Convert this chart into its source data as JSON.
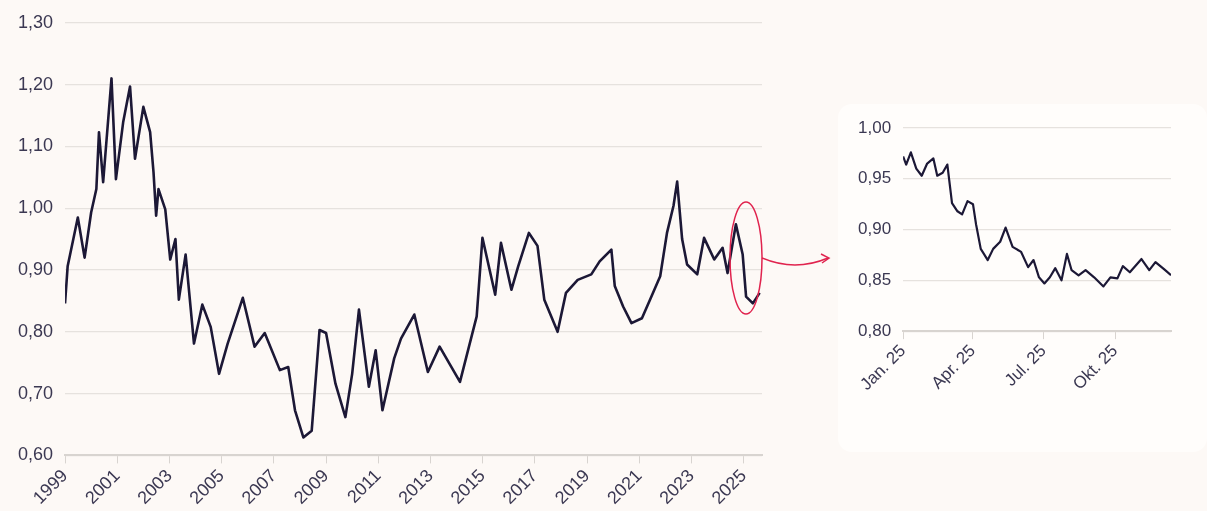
{
  "chart_data": [
    {
      "type": "line",
      "x": [
        1999.0,
        1999.1,
        1999.49,
        1999.75,
        2000.0,
        2000.2,
        2000.3,
        2000.46,
        2000.78,
        2000.95,
        2001.23,
        2001.49,
        2001.68,
        2002.0,
        2002.26,
        2002.39,
        2002.49,
        2002.58,
        2002.84,
        2003.03,
        2003.23,
        2003.36,
        2003.62,
        2003.94,
        2004.26,
        2004.58,
        2004.9,
        2005.23,
        2005.81,
        2006.26,
        2006.65,
        2007.23,
        2007.55,
        2007.81,
        2008.13,
        2008.45,
        2008.75,
        2009.0,
        2009.36,
        2009.74,
        2010.0,
        2010.26,
        2010.64,
        2010.9,
        2011.16,
        2011.61,
        2011.87,
        2012.38,
        2012.9,
        2013.35,
        2014.13,
        2014.77,
        2014.99,
        2015.48,
        2015.7,
        2016.1,
        2016.36,
        2016.77,
        2017.1,
        2017.36,
        2017.87,
        2018.19,
        2018.64,
        2019.16,
        2019.48,
        2019.93,
        2020.06,
        2020.38,
        2020.7,
        2021.1,
        2021.41,
        2021.8,
        2022.06,
        2022.31,
        2022.45,
        2022.64,
        2022.83,
        2023.22,
        2023.48,
        2023.87,
        2024.19,
        2024.38,
        2024.7,
        2024.96,
        2025.09,
        2025.35,
        2025.61
      ],
      "series": [
        {
          "color": "#1c1836",
          "values": [
            0.846,
            0.906,
            0.985,
            0.92,
            0.993,
            1.031,
            1.123,
            1.042,
            1.21,
            1.047,
            1.14,
            1.197,
            1.08,
            1.164,
            1.123,
            1.058,
            0.988,
            1.031,
            0.998,
            0.917,
            0.95,
            0.852,
            0.925,
            0.781,
            0.844,
            0.808,
            0.732,
            0.781,
            0.855,
            0.776,
            0.798,
            0.738,
            0.743,
            0.673,
            0.629,
            0.64,
            0.803,
            0.798,
            0.716,
            0.662,
            0.732,
            0.836,
            0.711,
            0.77,
            0.673,
            0.757,
            0.789,
            0.828,
            0.735,
            0.776,
            0.719,
            0.825,
            0.952,
            0.86,
            0.944,
            0.868,
            0.906,
            0.96,
            0.939,
            0.852,
            0.8,
            0.863,
            0.884,
            0.893,
            0.914,
            0.933,
            0.874,
            0.841,
            0.814,
            0.822,
            0.852,
            0.89,
            0.96,
            1.004,
            1.043,
            0.95,
            0.909,
            0.893,
            0.952,
            0.917,
            0.936,
            0.895,
            0.974,
            0.925,
            0.857,
            0.846,
            0.863
          ]
        }
      ],
      "xlim": [
        1999,
        2025.7
      ],
      "xticks": [
        1999,
        2001,
        2003,
        2005,
        2007,
        2009,
        2011,
        2013,
        2015,
        2017,
        2019,
        2021,
        2023,
        2025
      ],
      "ylim": [
        0.6,
        1.3
      ],
      "yticks": [
        {
          "value": 0.6,
          "label": "0,60"
        },
        {
          "value": 0.7,
          "label": "0,70"
        },
        {
          "value": 0.8,
          "label": "0,80"
        },
        {
          "value": 0.9,
          "label": "0,90"
        },
        {
          "value": 1.0,
          "label": "1,00"
        },
        {
          "value": 1.1,
          "label": "1,10"
        },
        {
          "value": 1.2,
          "label": "1,20"
        },
        {
          "value": 1.3,
          "label": "1,30"
        }
      ],
      "grid": "y"
    },
    {
      "type": "line",
      "x": [
        "2025-01-01",
        "2025-01-05",
        "2025-01-11",
        "2025-01-18",
        "2025-01-25",
        "2025-02-01",
        "2025-02-09",
        "2025-02-14",
        "2025-02-21",
        "2025-02-27",
        "2025-03-05",
        "2025-03-12",
        "2025-03-18",
        "2025-03-25",
        "2025-04-01",
        "2025-04-05",
        "2025-04-11",
        "2025-04-20",
        "2025-04-27",
        "2025-05-06",
        "2025-05-13",
        "2025-05-22",
        "2025-06-02",
        "2025-06-11",
        "2025-06-18",
        "2025-06-25",
        "2025-07-02",
        "2025-07-09",
        "2025-07-16",
        "2025-07-24",
        "2025-07-31",
        "2025-08-06",
        "2025-08-15",
        "2025-08-24",
        "2025-09-04",
        "2025-09-16",
        "2025-09-25",
        "2025-10-04",
        "2025-10-11",
        "2025-10-20",
        "2025-11-04",
        "2025-11-14",
        "2025-11-22",
        "2025-12-03",
        "2025-12-12"
      ],
      "series": [
        {
          "color": "#1c1836",
          "values": [
            0.972,
            0.964,
            0.976,
            0.96,
            0.953,
            0.965,
            0.97,
            0.953,
            0.956,
            0.964,
            0.926,
            0.918,
            0.915,
            0.928,
            0.925,
            0.905,
            0.881,
            0.87,
            0.881,
            0.888,
            0.902,
            0.883,
            0.878,
            0.863,
            0.87,
            0.853,
            0.847,
            0.853,
            0.862,
            0.85,
            0.876,
            0.86,
            0.855,
            0.86,
            0.853,
            0.844,
            0.853,
            0.852,
            0.864,
            0.858,
            0.871,
            0.86,
            0.868,
            0.861,
            0.855
          ]
        }
      ],
      "xlim": [
        "2025-01-01",
        "2025-12-12"
      ],
      "xticks": [
        {
          "value": "2025-01-01",
          "label": "Jan. 25"
        },
        {
          "value": "2025-04-01",
          "label": "Apr. 25"
        },
        {
          "value": "2025-07-01",
          "label": "Jul. 25"
        },
        {
          "value": "2025-10-01",
          "label": "Okt. 25"
        }
      ],
      "ylim": [
        0.8,
        1.0
      ],
      "yticks": [
        {
          "value": 0.8,
          "label": "0,80"
        },
        {
          "value": 0.85,
          "label": "0,85"
        },
        {
          "value": 0.9,
          "label": "0,90"
        },
        {
          "value": 0.95,
          "label": "0,95"
        },
        {
          "value": 1.0,
          "label": "1,00"
        }
      ],
      "grid": "y"
    }
  ]
}
